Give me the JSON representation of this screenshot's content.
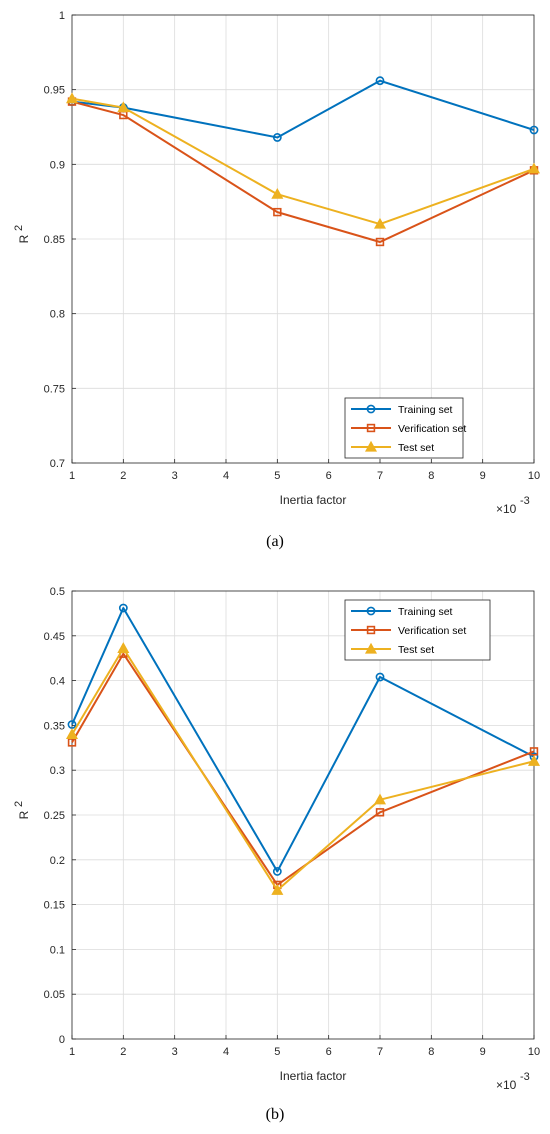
{
  "colors": {
    "training": "#0072BD",
    "verification": "#D95319",
    "test": "#EDB120",
    "grid": "#dcdcdc",
    "axis": "#262626"
  },
  "chart_data": [
    {
      "type": "line",
      "panel_label": "(a)",
      "xlabel": "Inertia factor",
      "ylabel": "R",
      "ylabel_superscript": "2",
      "x_multiplier_text": "×10",
      "x_multiplier_exp": "-3",
      "x": [
        1,
        2,
        5,
        7,
        10
      ],
      "xlim": [
        1,
        10
      ],
      "ylim": [
        0.7,
        1.0
      ],
      "xticks": [
        1,
        2,
        3,
        4,
        5,
        6,
        7,
        8,
        9,
        10
      ],
      "yticks": [
        0.7,
        0.75,
        0.8,
        0.85,
        0.9,
        0.95,
        1.0
      ],
      "ytick_labels": [
        "0.7",
        "0.75",
        "0.8",
        "0.85",
        "0.9",
        "0.95",
        "1"
      ],
      "grid": true,
      "legend_position": "bottom-right",
      "series": [
        {
          "name": "Training set",
          "marker": "circle",
          "color_key": "training",
          "values": [
            0.942,
            0.938,
            0.918,
            0.956,
            0.923
          ]
        },
        {
          "name": "Verification set",
          "marker": "square",
          "color_key": "verification",
          "values": [
            0.942,
            0.933,
            0.868,
            0.848,
            0.896
          ]
        },
        {
          "name": "Test set",
          "marker": "triangle",
          "color_key": "test",
          "values": [
            0.944,
            0.938,
            0.88,
            0.86,
            0.897
          ]
        }
      ]
    },
    {
      "type": "line",
      "panel_label": "(b)",
      "xlabel": "Inertia factor",
      "ylabel": "R",
      "ylabel_superscript": "2",
      "x_multiplier_text": "×10",
      "x_multiplier_exp": "-3",
      "x": [
        1,
        2,
        5,
        7,
        10
      ],
      "xlim": [
        1,
        10
      ],
      "ylim": [
        0,
        0.5
      ],
      "xticks": [
        1,
        2,
        3,
        4,
        5,
        6,
        7,
        8,
        9,
        10
      ],
      "yticks": [
        0,
        0.05,
        0.1,
        0.15,
        0.2,
        0.25,
        0.3,
        0.35,
        0.4,
        0.45,
        0.5
      ],
      "ytick_labels": [
        "0",
        "0.05",
        "0.1",
        "0.15",
        "0.2",
        "0.25",
        "0.3",
        "0.35",
        "0.4",
        "0.45",
        "0.5"
      ],
      "grid": true,
      "legend_position": "top-right",
      "series": [
        {
          "name": "Training set",
          "marker": "circle",
          "color_key": "training",
          "values": [
            0.351,
            0.481,
            0.187,
            0.404,
            0.315
          ]
        },
        {
          "name": "Verification set",
          "marker": "square",
          "color_key": "verification",
          "values": [
            0.331,
            0.43,
            0.172,
            0.253,
            0.321
          ]
        },
        {
          "name": "Test set",
          "marker": "triangle",
          "color_key": "test",
          "values": [
            0.34,
            0.436,
            0.166,
            0.267,
            0.31
          ]
        }
      ]
    }
  ]
}
